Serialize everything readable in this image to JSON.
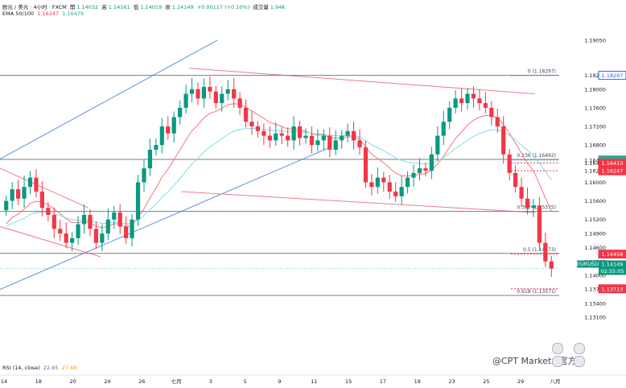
{
  "header": {
    "symbol": "欧元 / 美元 · 4小时 · FXCM",
    "open_label": "開",
    "open": "1.14032",
    "high_label": "高",
    "high": "1.14161",
    "low_label": "低",
    "low": "1.14019",
    "close_label": "收",
    "close": "1.14149",
    "change": "+0.00117 (+0.10%)",
    "volume_label": "成交量",
    "volume": "1.94K"
  },
  "ema": {
    "label": "EMA 50/100",
    "v1": "1.16247",
    "v2": "1.16479"
  },
  "rsi": {
    "label": "RSI (14, close)",
    "v1": "22.65",
    "v2": "27.48"
  },
  "menu_icon": "more-vertical-icon",
  "watermark": "@CPT Markets 官方",
  "colors": {
    "up": "#089981",
    "down": "#f23645",
    "ema50": "#f7757e",
    "ema100": "#7fdde9",
    "trend_blue": "#5b8fe0",
    "trend_red": "#ef7d86",
    "fib": "#787b86"
  },
  "chart_data": {
    "type": "candlestick",
    "ylim": [
      1.13,
      1.195
    ],
    "y_ticks": [
      "1.19050",
      "1.18297",
      "1.18000",
      "1.17600",
      "1.17200",
      "1.16800",
      "1.16479",
      "1.16413",
      "1.16247",
      "1.16000",
      "1.15600",
      "1.15200",
      "1.14900",
      "1.14600",
      "1.14300",
      "1.14000",
      "1.13713",
      "1.13400",
      "1.13100"
    ],
    "x_ticks": [
      "14",
      "18",
      "20",
      "24",
      "26",
      "七月",
      "3",
      "5",
      "9",
      "11",
      "15",
      "17",
      "19",
      "23",
      "25",
      "29",
      "八月"
    ],
    "fib_levels": [
      {
        "label": "0 (1.18297)",
        "value": 1.18297
      },
      {
        "label": "0.236 (1.16492)",
        "value": 1.16492
      },
      {
        "label": "0.382 (1.15375)",
        "value": 1.15375
      },
      {
        "label": "0.5 (1.14473)",
        "value": 1.14473
      },
      {
        "label": "0.618 (1.13571)",
        "value": 1.13571
      }
    ],
    "price_tags": [
      {
        "label": "1.18297",
        "value": 1.18297,
        "color": "#2962ff",
        "style": "outline"
      },
      {
        "label": "1.16479",
        "value": 1.16479,
        "color": "#22ab94",
        "style": "fill"
      },
      {
        "label": "1.16413",
        "value": 1.16413,
        "color": "#f23645",
        "style": "fill"
      },
      {
        "label": "1.16247",
        "value": 1.16247,
        "color": "#f23645",
        "style": "fill"
      },
      {
        "label": "1.14458",
        "value": 1.14458,
        "color": "#f23645",
        "style": "fill"
      },
      {
        "label": "1.13713",
        "value": 1.13713,
        "color": "#f23645",
        "style": "fill"
      }
    ],
    "last_price_tag": {
      "symbol": "EURUSD",
      "price": "1.14149",
      "countdown": "02:55:05",
      "value": 1.14149
    },
    "closes": [
      1.156,
      1.1585,
      1.1565,
      1.159,
      1.161,
      1.158,
      1.1545,
      1.153,
      1.15,
      1.149,
      1.147,
      1.148,
      1.151,
      1.153,
      1.15,
      1.147,
      1.149,
      1.152,
      1.1535,
      1.1505,
      1.148,
      1.152,
      1.16,
      1.163,
      1.167,
      1.168,
      1.172,
      1.1705,
      1.174,
      1.176,
      1.179,
      1.18,
      1.178,
      1.1805,
      1.1795,
      1.177,
      1.179,
      1.18,
      1.178,
      1.176,
      1.173,
      1.172,
      1.171,
      1.17,
      1.169,
      1.1705,
      1.17,
      1.169,
      1.172,
      1.1695,
      1.17,
      1.168,
      1.169,
      1.17,
      1.167,
      1.169,
      1.17,
      1.171,
      1.169,
      1.1675,
      1.16,
      1.159,
      1.161,
      1.16,
      1.158,
      1.157,
      1.159,
      1.161,
      1.162,
      1.163,
      1.1625,
      1.166,
      1.17,
      1.173,
      1.176,
      1.178,
      1.177,
      1.179,
      1.178,
      1.177,
      1.176,
      1.174,
      1.172,
      1.166,
      1.162,
      1.159,
      1.1565,
      1.1545,
      1.155,
      1.147,
      1.143,
      1.1415
    ]
  }
}
